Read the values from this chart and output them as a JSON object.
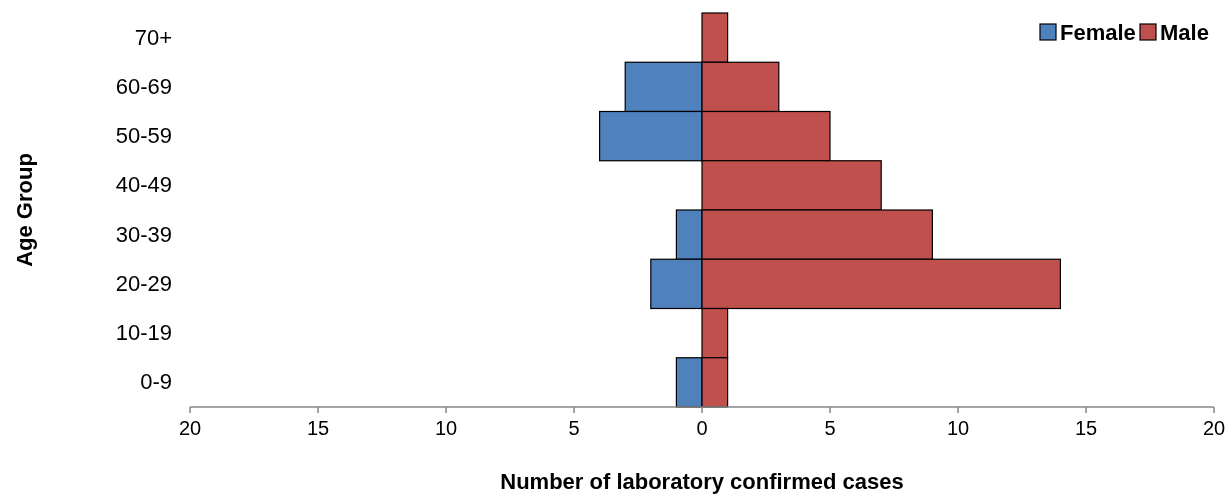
{
  "chart_data": {
    "type": "bar",
    "orientation": "horizontal",
    "stacked": true,
    "xlabel": "Number of laboratory confirmed cases",
    "ylabel": "Age Group",
    "categories": [
      "70+",
      "60-69",
      "50-59",
      "40-49",
      "30-39",
      "20-29",
      "10-19",
      "0-9"
    ],
    "series": [
      {
        "name": "Female",
        "color": "#4f81bd",
        "values": [
          null,
          -3,
          -4,
          null,
          -1,
          -2,
          null,
          -1
        ]
      },
      {
        "name": "Male",
        "color": "#c0504d",
        "values": [
          1,
          3,
          5,
          7,
          9,
          14,
          1,
          1
        ]
      }
    ],
    "xlim": [
      -20,
      20
    ],
    "xticks": [
      {
        "value": -20,
        "label": "20"
      },
      {
        "value": -15,
        "label": "15"
      },
      {
        "value": -10,
        "label": "10"
      },
      {
        "value": -5,
        "label": "5"
      },
      0,
      5,
      10,
      15,
      20
    ],
    "legend": "top right",
    "grid": false
  }
}
